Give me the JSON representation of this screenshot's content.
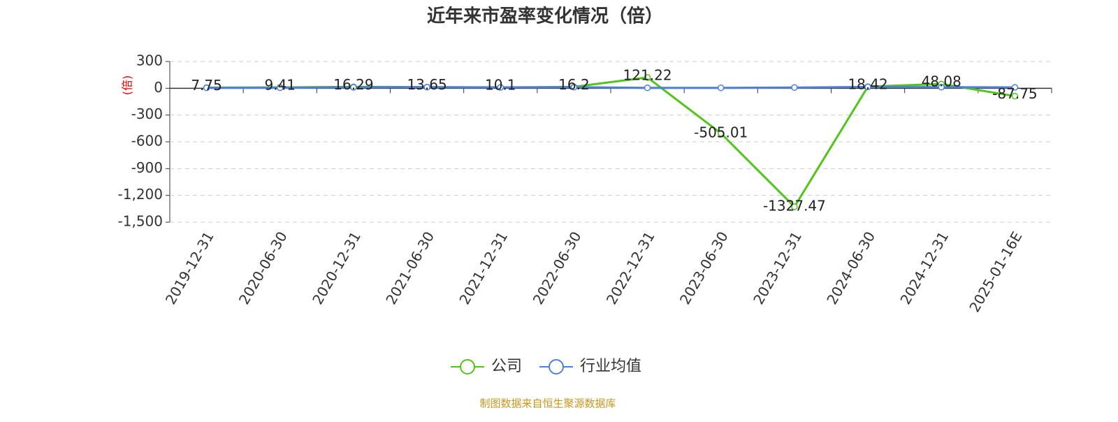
{
  "chart_data": {
    "type": "line",
    "title": "近年来市盈率变化情况（倍）",
    "y_label": "(倍)",
    "categories": [
      "2019-12-31",
      "2020-06-30",
      "2020-12-31",
      "2021-06-30",
      "2021-12-31",
      "2022-06-30",
      "2022-12-31",
      "2023-06-30",
      "2023-12-31",
      "2024-06-30",
      "2024-12-31",
      "2025-01-16E"
    ],
    "series": [
      {
        "name": "公司",
        "color": "#52c41a",
        "values": [
          7.75,
          9.41,
          16.29,
          13.65,
          10.1,
          16.2,
          121.22,
          -505.01,
          -1327.47,
          18.42,
          48.08,
          -87.75
        ]
      },
      {
        "name": "行业均值",
        "color": "#4e7fdc",
        "values": [
          5,
          6,
          10,
          12,
          10,
          12,
          5,
          5,
          8,
          15,
          12,
          10
        ]
      }
    ],
    "ylim": [
      -1500,
      300
    ],
    "yticks": [
      300,
      0,
      -300,
      -600,
      -900,
      {
        "value": -1200,
        "label": "-1,200"
      },
      {
        "value": -1500,
        "label": "-1,500"
      }
    ],
    "grid": true,
    "legend": "bottom",
    "source": "制图数据来自恒生聚源数据库"
  }
}
